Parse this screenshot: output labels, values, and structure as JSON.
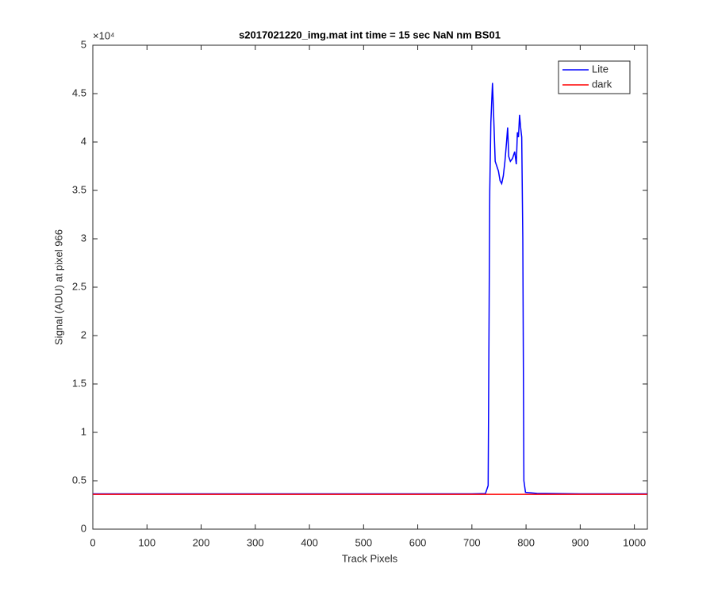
{
  "chart_data": {
    "type": "line",
    "title": "s2017021220_img.mat int time = 15 sec  NaN nm BS01",
    "x_label": "Track Pixels",
    "y_label": "Signal (ADU) at pixel 966",
    "y_exponent_label": "×10⁴",
    "x": [
      0,
      100,
      200,
      300,
      400,
      500,
      600,
      700,
      725,
      730,
      733,
      735,
      738,
      740,
      743,
      746,
      749,
      752,
      755,
      758,
      761,
      764,
      766,
      768,
      771,
      775,
      779,
      782,
      784,
      786,
      788,
      790,
      792,
      794,
      796,
      799,
      820,
      900,
      1000,
      1024
    ],
    "series": [
      {
        "name": "Lite",
        "color": "#0000ff",
        "values": [
          3650,
          3650,
          3650,
          3650,
          3650,
          3650,
          3650,
          3650,
          3680,
          4500,
          35000,
          42000,
          46100,
          43000,
          38000,
          37500,
          37000,
          36000,
          35700,
          36500,
          38000,
          40000,
          41500,
          38500,
          38000,
          38300,
          39000,
          37700,
          41000,
          40500,
          42800,
          41500,
          40500,
          30000,
          5000,
          3800,
          3700,
          3650,
          3650,
          3650
        ]
      },
      {
        "name": "dark",
        "color": "#ff0000",
        "values": [
          3600,
          3600,
          3600,
          3600,
          3600,
          3600,
          3600,
          3600,
          3600,
          3600,
          3600,
          3600,
          3600,
          3600,
          3600,
          3600,
          3600,
          3600,
          3600,
          3600,
          3600,
          3600,
          3600,
          3600,
          3600,
          3600,
          3600,
          3600,
          3600,
          3600,
          3600,
          3600,
          3600,
          3600,
          3600,
          3600,
          3600,
          3600,
          3600,
          3600
        ]
      }
    ],
    "xlim": [
      0,
      1024
    ],
    "xticks": [
      0,
      100,
      200,
      300,
      400,
      500,
      600,
      700,
      800,
      900,
      1000
    ],
    "ylim": [
      0,
      50000
    ],
    "yticks": [
      {
        "value": 0,
        "label": "0"
      },
      {
        "value": 5000,
        "label": "0.5"
      },
      {
        "value": 10000,
        "label": "1"
      },
      {
        "value": 15000,
        "label": "1.5"
      },
      {
        "value": 20000,
        "label": "2"
      },
      {
        "value": 25000,
        "label": "2.5"
      },
      {
        "value": 30000,
        "label": "3"
      },
      {
        "value": 35000,
        "label": "3.5"
      },
      {
        "value": 40000,
        "label": "4"
      },
      {
        "value": 45000,
        "label": "4.5"
      },
      {
        "value": 50000,
        "label": "5"
      }
    ],
    "legend": "top-right",
    "grid": false
  }
}
